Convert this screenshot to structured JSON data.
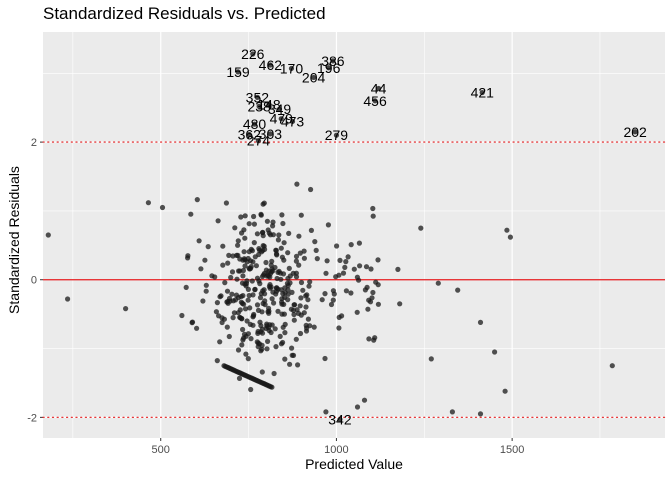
{
  "chart_data": {
    "type": "scatter",
    "title": "Standardized Residuals vs. Predicted",
    "xlabel": "Predicted Value",
    "ylabel": "Standardized Residuals",
    "xlim": [
      165,
      1935
    ],
    "ylim": [
      -2.3,
      3.6
    ],
    "x_ticks": [
      500,
      1000,
      1500
    ],
    "y_ticks": [
      -2,
      0,
      2
    ],
    "grid": true,
    "reference_lines": {
      "zero_line": {
        "y": 0,
        "color": "#e41a1c",
        "style": "solid"
      },
      "thresholds": {
        "values": [
          -2,
          2
        ],
        "color": "#e41a1c",
        "style": "dotted"
      }
    },
    "colors": {
      "panel": "#ebebeb",
      "grid": "#ffffff",
      "point": "#1a1a1a"
    },
    "labeled_points": [
      {
        "label": "226",
        "x": 762,
        "y": 3.28
      },
      {
        "label": "159",
        "x": 720,
        "y": 3.02
      },
      {
        "label": "462",
        "x": 812,
        "y": 3.12
      },
      {
        "label": "170",
        "x": 872,
        "y": 3.07
      },
      {
        "label": "386",
        "x": 990,
        "y": 3.18
      },
      {
        "label": "196",
        "x": 978,
        "y": 3.08
      },
      {
        "label": "204",
        "x": 935,
        "y": 2.94
      },
      {
        "label": "44",
        "x": 1120,
        "y": 2.78
      },
      {
        "label": "421",
        "x": 1415,
        "y": 2.72
      },
      {
        "label": "456",
        "x": 1110,
        "y": 2.6
      },
      {
        "label": "352",
        "x": 775,
        "y": 2.65
      },
      {
        "label": "238",
        "x": 780,
        "y": 2.52
      },
      {
        "label": "148",
        "x": 808,
        "y": 2.55
      },
      {
        "label": "349",
        "x": 838,
        "y": 2.48
      },
      {
        "label": "473",
        "x": 875,
        "y": 2.3
      },
      {
        "label": "479",
        "x": 843,
        "y": 2.34
      },
      {
        "label": "480",
        "x": 767,
        "y": 2.26
      },
      {
        "label": "362",
        "x": 752,
        "y": 2.11
      },
      {
        "label": "303",
        "x": 812,
        "y": 2.12
      },
      {
        "label": "274",
        "x": 778,
        "y": 2.02
      },
      {
        "label": "279",
        "x": 1000,
        "y": 2.1
      },
      {
        "label": "202",
        "x": 1850,
        "y": 2.15
      },
      {
        "label": "342",
        "x": 1010,
        "y": -2.03
      }
    ]
  }
}
